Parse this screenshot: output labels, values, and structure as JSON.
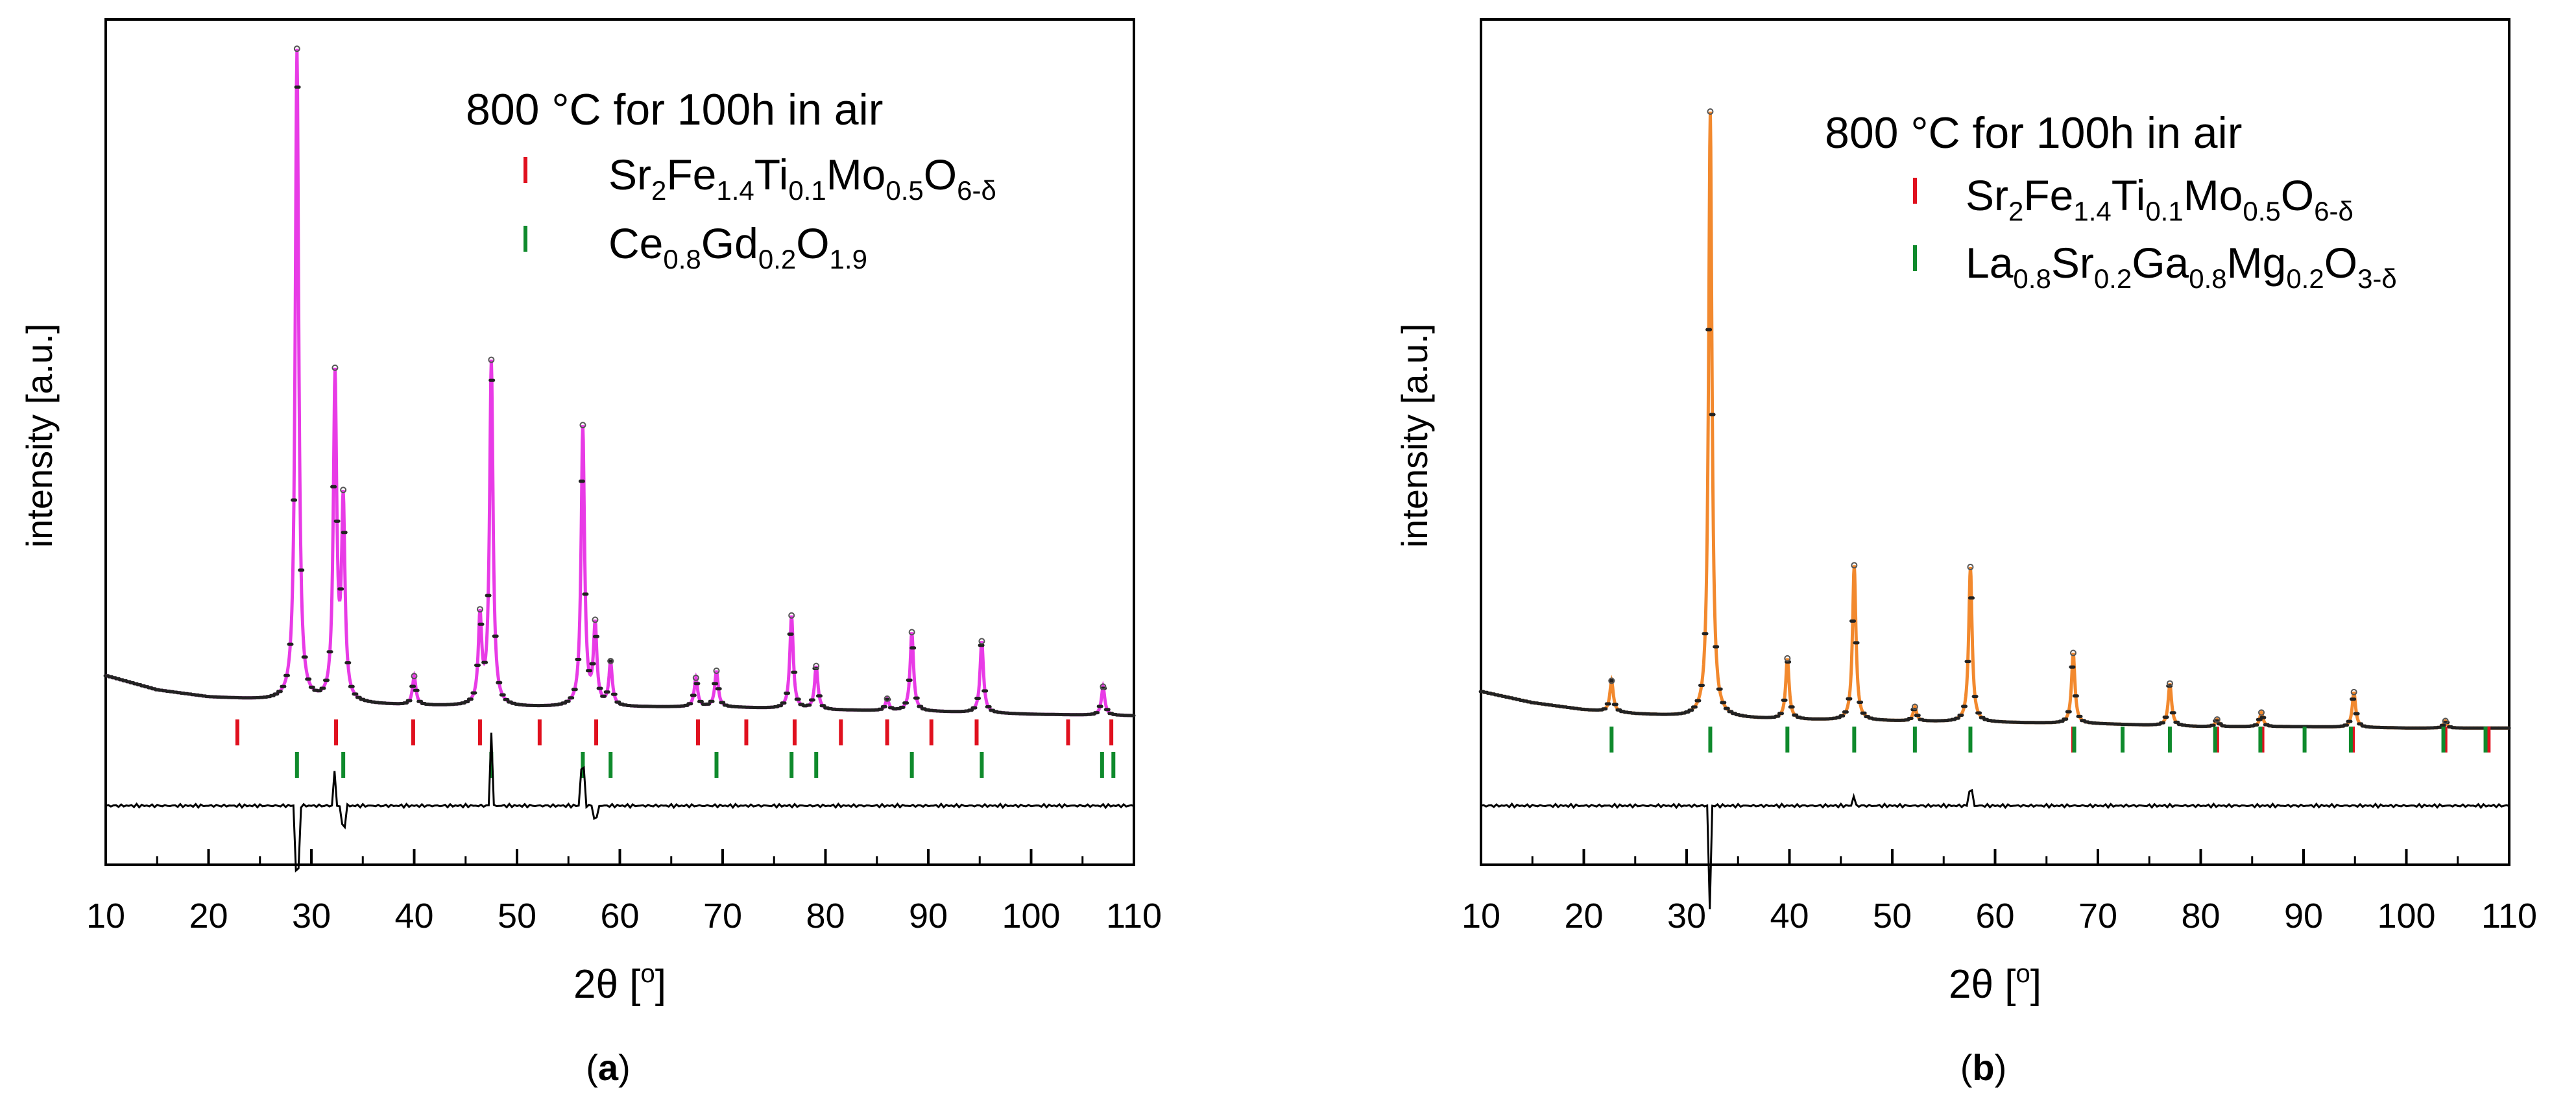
{
  "chart_data": [
    {
      "type": "line",
      "panel_label": "(a)",
      "panel_letter": "a",
      "panel_paren_open": "(",
      "panel_paren_close": ")",
      "condition": "800 °C for 100h in air",
      "ylabel": "intensity [a.u.]",
      "xlabel": {
        "prefix": "2θ [",
        "sup": "o",
        "suffix": "]"
      },
      "xlim": [
        10,
        110
      ],
      "ylim": [
        -1.1,
        4.8
      ],
      "x_ticks": [
        10,
        20,
        30,
        40,
        50,
        60,
        70,
        80,
        90,
        100,
        110
      ],
      "profile_color": "#e83be6",
      "background": {
        "x": [
          10,
          15,
          20,
          25,
          30,
          40,
          50,
          60,
          70,
          80,
          90,
          100,
          110
        ],
        "y": [
          0.22,
          0.12,
          0.07,
          0.05,
          0.03,
          0.01,
          0,
          0,
          0,
          -0.02,
          -0.03,
          -0.05,
          -0.06
        ]
      },
      "peaks": [
        {
          "x": 28.6,
          "h": 4.55
        },
        {
          "x": 32.3,
          "h": 2.25
        },
        {
          "x": 33.1,
          "h": 1.35
        },
        {
          "x": 40.0,
          "h": 0.2
        },
        {
          "x": 46.4,
          "h": 0.6
        },
        {
          "x": 47.5,
          "h": 2.4
        },
        {
          "x": 56.4,
          "h": 1.95
        },
        {
          "x": 57.6,
          "h": 0.55
        },
        {
          "x": 59.1,
          "h": 0.3
        },
        {
          "x": 67.4,
          "h": 0.2
        },
        {
          "x": 69.4,
          "h": 0.25
        },
        {
          "x": 76.7,
          "h": 0.65
        },
        {
          "x": 79.1,
          "h": 0.3
        },
        {
          "x": 86.0,
          "h": 0.08
        },
        {
          "x": 88.4,
          "h": 0.55
        },
        {
          "x": 95.2,
          "h": 0.5
        },
        {
          "x": 107.0,
          "h": 0.2
        }
      ],
      "legend": [
        {
          "color": "#e0101e",
          "parts": [
            [
              "Sr",
              ""
            ],
            [
              "2",
              "sub"
            ],
            [
              "Fe",
              ""
            ],
            [
              "1.4",
              "sub"
            ],
            [
              "Ti",
              ""
            ],
            [
              "0.1",
              "sub"
            ],
            [
              "Mo",
              ""
            ],
            [
              "0.5",
              "sub"
            ],
            [
              "O",
              ""
            ],
            [
              "6-δ",
              "sub"
            ]
          ]
        },
        {
          "color": "#0f8a2c",
          "parts": [
            [
              "Ce",
              ""
            ],
            [
              "0.8",
              "sub"
            ],
            [
              "Gd",
              ""
            ],
            [
              "0.2",
              "sub"
            ],
            [
              "O",
              ""
            ],
            [
              "1.9",
              "sub"
            ]
          ]
        }
      ],
      "reflections": [
        [
          22.8,
          32.4,
          39.9,
          46.4,
          52.2,
          57.7,
          67.6,
          72.3,
          77.0,
          81.5,
          86.0,
          90.3,
          94.7,
          103.6,
          107.8
        ],
        [
          28.6,
          33.1,
          47.5,
          56.4,
          59.1,
          69.4,
          76.7,
          79.1,
          88.4,
          95.2,
          106.9,
          108.0
        ]
      ],
      "difference": [
        {
          "x": 28.6,
          "d": -0.26
        },
        {
          "x": 32.3,
          "d": 0.14
        },
        {
          "x": 33.1,
          "d": -0.08
        },
        {
          "x": 47.5,
          "d": 0.3
        },
        {
          "x": 56.4,
          "d": 0.15
        },
        {
          "x": 57.6,
          "d": -0.05
        }
      ]
    },
    {
      "type": "line",
      "panel_label": "(b)",
      "panel_letter": "b",
      "panel_paren_open": "(",
      "panel_paren_close": ")",
      "condition": "800 °C for 100h in air",
      "ylabel": "intensity [a.u.]",
      "xlabel": {
        "prefix": "2θ [",
        "sup": "o",
        "suffix": "]"
      },
      "xlim": [
        10,
        110
      ],
      "ylim": [
        -1.0,
        5.0
      ],
      "x_ticks": [
        10,
        20,
        30,
        40,
        50,
        60,
        70,
        80,
        90,
        100,
        110
      ],
      "profile_color": "#f2892e",
      "background": {
        "x": [
          10,
          15,
          20,
          25,
          30,
          40,
          50,
          60,
          70,
          80,
          90,
          100,
          110
        ],
        "y": [
          0.23,
          0.15,
          0.1,
          0.07,
          0.05,
          0.03,
          0.02,
          0.01,
          0,
          -0.02,
          -0.02,
          -0.03,
          -0.03
        ]
      },
      "peaks": [
        {
          "x": 22.7,
          "h": 0.22
        },
        {
          "x": 32.3,
          "h": 4.3
        },
        {
          "x": 39.8,
          "h": 0.43
        },
        {
          "x": 46.3,
          "h": 1.1
        },
        {
          "x": 52.2,
          "h": 0.1
        },
        {
          "x": 57.6,
          "h": 1.1
        },
        {
          "x": 67.6,
          "h": 0.5
        },
        {
          "x": 77.0,
          "h": 0.3
        },
        {
          "x": 81.6,
          "h": 0.05
        },
        {
          "x": 85.9,
          "h": 0.1
        },
        {
          "x": 94.9,
          "h": 0.25
        },
        {
          "x": 103.8,
          "h": 0.05
        }
      ],
      "legend": [
        {
          "color": "#e0101e",
          "parts": [
            [
              "Sr",
              ""
            ],
            [
              "2",
              "sub"
            ],
            [
              "Fe",
              ""
            ],
            [
              "1.4",
              "sub"
            ],
            [
              "Ti",
              ""
            ],
            [
              "0.1",
              "sub"
            ],
            [
              "Mo",
              ""
            ],
            [
              "0.5",
              "sub"
            ],
            [
              "O",
              ""
            ],
            [
              "6-δ",
              "sub"
            ]
          ]
        },
        {
          "color": "#0f8a2c",
          "parts": [
            [
              "La",
              ""
            ],
            [
              "0.8",
              "sub"
            ],
            [
              "Sr",
              ""
            ],
            [
              "0.2",
              "sub"
            ],
            [
              "Ga",
              ""
            ],
            [
              "0.8",
              "sub"
            ],
            [
              "Mg",
              ""
            ],
            [
              "0.2",
              "sub"
            ],
            [
              "O",
              ""
            ],
            [
              "3-δ",
              "sub"
            ]
          ]
        }
      ],
      "reflections": [
        [
          67.6,
          81.6,
          86.0,
          94.8,
          103.8,
          108.0
        ],
        [
          22.7,
          32.3,
          39.8,
          46.3,
          52.2,
          57.6,
          67.7,
          72.4,
          77.0,
          81.4,
          85.8,
          90.1,
          94.6,
          103.6,
          107.7
        ]
      ],
      "difference": [
        {
          "x": 32.3,
          "d": -0.42
        },
        {
          "x": 46.3,
          "d": 0.04
        },
        {
          "x": 57.6,
          "d": 0.06
        }
      ]
    }
  ]
}
